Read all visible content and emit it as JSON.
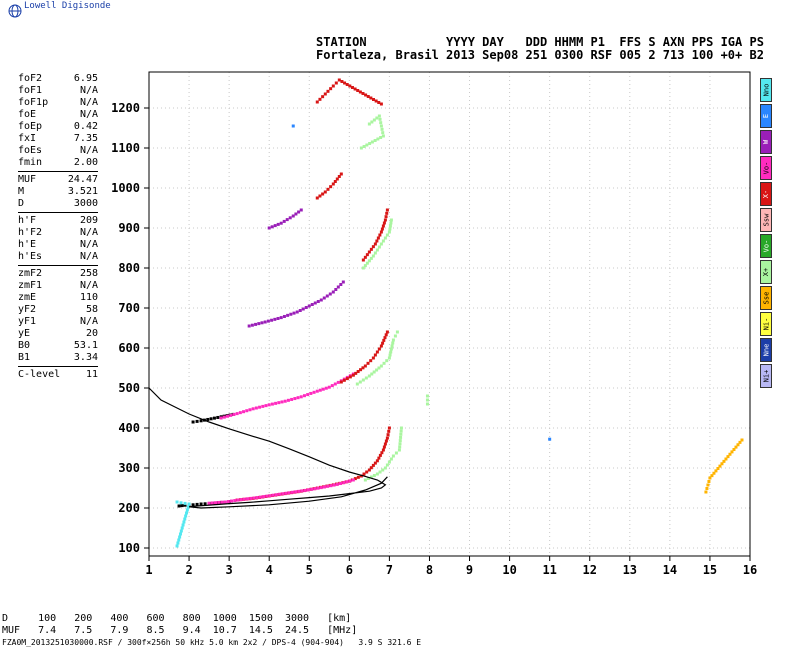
{
  "logo": {
    "text": "Lowell Digisonde",
    "icon": "globe-icon",
    "color": "#1a3fa8"
  },
  "header": {
    "line1": "STATION           YYYY DAY   DDD HHMM P1  FFS S AXN PPS IGA PS",
    "line2": "Fortaleza, Brasil 2013 Sep08 251 0300 RSF 005 2 713 100 +0+ B2"
  },
  "params": [
    {
      "name": "foF2",
      "value": "6.95"
    },
    {
      "name": "foF1",
      "value": "N/A"
    },
    {
      "name": "foF1p",
      "value": "N/A"
    },
    {
      "name": "foE",
      "value": "N/A"
    },
    {
      "name": "foEp",
      "value": "0.42"
    },
    {
      "name": "fxI",
      "value": "7.35"
    },
    {
      "name": "foEs",
      "value": "N/A"
    },
    {
      "name": "fmin",
      "value": "2.00"
    },
    {
      "sep": true
    },
    {
      "name": "MUF",
      "value": "24.47"
    },
    {
      "name": "M",
      "value": "3.521"
    },
    {
      "name": "D",
      "value": "3000"
    },
    {
      "sep": true
    },
    {
      "name": "h'F",
      "value": "209"
    },
    {
      "name": "h'F2",
      "value": "N/A"
    },
    {
      "name": "h'E",
      "value": "N/A"
    },
    {
      "name": "h'Es",
      "value": "N/A"
    },
    {
      "sep": true
    },
    {
      "name": "zmF2",
      "value": "258"
    },
    {
      "name": "zmF1",
      "value": "N/A"
    },
    {
      "name": "zmE",
      "value": "110"
    },
    {
      "name": "yF2",
      "value": "58"
    },
    {
      "name": "yF1",
      "value": "N/A"
    },
    {
      "name": "yE",
      "value": "20"
    },
    {
      "name": "B0",
      "value": "53.1"
    },
    {
      "name": "B1",
      "value": "3.34"
    },
    {
      "sep": true
    },
    {
      "name": "C-level",
      "value": "11"
    }
  ],
  "legend": [
    {
      "label": "Nno",
      "color": "#55e8f0"
    },
    {
      "label": "E",
      "color": "#2a86ff"
    },
    {
      "label": "W",
      "color": "#9a1fb8"
    },
    {
      "label": "Vo-",
      "color": "#ff2bbf"
    },
    {
      "label": "X-",
      "color": "#d81616"
    },
    {
      "label": "Ssw",
      "color": "#ffb6b6"
    },
    {
      "label": "Vo-",
      "color": "#28a828"
    },
    {
      "label": "X+",
      "color": "#aaf5a0"
    },
    {
      "label": "Sse",
      "color": "#ffb400"
    },
    {
      "label": "Ni-",
      "color": "#ffff40"
    },
    {
      "label": "Nne",
      "color": "#1c3ea8"
    },
    {
      "label": "Ni+",
      "color": "#b8b8f4"
    }
  ],
  "bottom_table": {
    "row1": "D     100   200   400   600   800  1000  1500  3000   [km]",
    "row2": "MUF   7.4   7.5   7.9   8.5   9.4  10.7  14.5  24.5   [MHz]"
  },
  "footer": "FZA0M_2013251030000.RSF / 300f×256h 50 kHz 5.0 km 2x2 / DPS-4 (904-904)   3.9 S 321.6 E",
  "chart_data": {
    "type": "scatter",
    "xlabel": "",
    "ylabel": "",
    "xlim": [
      1,
      16
    ],
    "ylim": [
      80,
      1290
    ],
    "x_ticks": [
      "1",
      "2",
      "3",
      "4",
      "5",
      "6",
      "7",
      "8",
      "9",
      "10",
      "11",
      "12",
      "13",
      "14",
      "15",
      "16"
    ],
    "y_ticks": [
      "100",
      "200",
      "300",
      "400",
      "500",
      "600",
      "700",
      "800",
      "900",
      "1000",
      "1100",
      "1200"
    ],
    "grid": true,
    "series": [
      {
        "color": "#000000",
        "points": [
          [
            1.75,
            205
          ],
          [
            1.9,
            207
          ],
          [
            2.1,
            208
          ],
          [
            2.3,
            210
          ],
          [
            2.5,
            211
          ],
          [
            2.8,
            214
          ],
          [
            3.0,
            216
          ]
        ]
      },
      {
        "color": "#d81616",
        "points": [
          [
            3.2,
            220
          ],
          [
            3.6,
            224
          ],
          [
            4.0,
            230
          ],
          [
            4.4,
            236
          ],
          [
            4.8,
            242
          ],
          [
            5.2,
            250
          ],
          [
            5.6,
            258
          ],
          [
            6.0,
            267
          ],
          [
            6.3,
            280
          ],
          [
            6.5,
            295
          ],
          [
            6.7,
            318
          ],
          [
            6.85,
            345
          ],
          [
            6.95,
            375
          ],
          [
            7.0,
            400
          ]
        ]
      },
      {
        "color": "#ff2bbf",
        "points": [
          [
            2.5,
            212
          ],
          [
            2.9,
            215
          ],
          [
            3.3,
            221
          ],
          [
            3.7,
            226
          ],
          [
            4.1,
            232
          ],
          [
            4.5,
            238
          ],
          [
            4.9,
            244
          ],
          [
            5.3,
            251
          ],
          [
            5.7,
            259
          ],
          [
            6.1,
            270
          ]
        ]
      },
      {
        "color": "#aaf5a0",
        "points": [
          [
            6.4,
            270
          ],
          [
            6.7,
            285
          ],
          [
            6.9,
            300
          ],
          [
            7.1,
            330
          ],
          [
            7.25,
            345
          ],
          [
            7.3,
            400
          ]
        ]
      },
      {
        "color": "#55e8f0",
        "points": [
          [
            1.7,
            215
          ],
          [
            1.8,
            213
          ],
          [
            2.0,
            210
          ],
          [
            1.7,
            105
          ]
        ]
      },
      {
        "color": "#000000",
        "points": [
          [
            2.1,
            415
          ],
          [
            2.3,
            418
          ],
          [
            2.8,
            428
          ],
          [
            3.1,
            434
          ]
        ]
      },
      {
        "color": "#ff2bbf",
        "points": [
          [
            2.8,
            425
          ],
          [
            3.2,
            436
          ],
          [
            3.6,
            448
          ],
          [
            4.0,
            458
          ],
          [
            4.4,
            467
          ],
          [
            4.8,
            478
          ],
          [
            5.2,
            492
          ],
          [
            5.5,
            502
          ],
          [
            5.8,
            518
          ],
          [
            6.1,
            535
          ]
        ]
      },
      {
        "color": "#d81616",
        "points": [
          [
            5.8,
            515
          ],
          [
            6.1,
            532
          ],
          [
            6.4,
            555
          ],
          [
            6.6,
            575
          ],
          [
            6.8,
            605
          ],
          [
            6.95,
            640
          ]
        ]
      },
      {
        "color": "#aaf5a0",
        "points": [
          [
            6.2,
            510
          ],
          [
            6.5,
            530
          ],
          [
            6.8,
            555
          ],
          [
            7.0,
            575
          ],
          [
            7.1,
            620
          ],
          [
            7.2,
            640
          ]
        ]
      },
      {
        "color": "#9a1fb8",
        "points": [
          [
            3.5,
            655
          ],
          [
            3.9,
            665
          ],
          [
            4.3,
            676
          ],
          [
            4.7,
            690
          ],
          [
            5.0,
            705
          ],
          [
            5.3,
            720
          ],
          [
            5.6,
            740
          ],
          [
            5.85,
            765
          ]
        ]
      },
      {
        "color": "#d81616",
        "points": [
          [
            6.35,
            820
          ],
          [
            6.5,
            840
          ],
          [
            6.65,
            860
          ],
          [
            6.8,
            890
          ],
          [
            6.9,
            920
          ],
          [
            6.95,
            945
          ]
        ]
      },
      {
        "color": "#aaf5a0",
        "points": [
          [
            6.35,
            800
          ],
          [
            6.6,
            830
          ],
          [
            6.8,
            860
          ],
          [
            7.0,
            890
          ],
          [
            7.05,
            920
          ]
        ]
      },
      {
        "color": "#9a1fb8",
        "points": [
          [
            4.0,
            900
          ],
          [
            4.3,
            912
          ],
          [
            4.6,
            930
          ],
          [
            4.8,
            945
          ]
        ]
      },
      {
        "color": "#d81616",
        "points": [
          [
            5.2,
            975
          ],
          [
            5.4,
            990
          ],
          [
            5.6,
            1010
          ],
          [
            5.8,
            1035
          ]
        ]
      },
      {
        "color": "#d81616",
        "points": [
          [
            5.2,
            1215
          ],
          [
            5.4,
            1235
          ],
          [
            5.6,
            1255
          ],
          [
            5.75,
            1270
          ],
          [
            6.8,
            1210
          ]
        ]
      },
      {
        "color": "#aaf5a0",
        "points": [
          [
            6.5,
            1160
          ],
          [
            6.75,
            1180
          ],
          [
            6.85,
            1130
          ],
          [
            6.3,
            1100
          ],
          [
            7.95,
            460
          ],
          [
            7.95,
            480
          ]
        ]
      },
      {
        "color": "#2a86ff",
        "points": [
          [
            4.6,
            1155
          ],
          [
            11.0,
            372
          ]
        ]
      },
      {
        "color": "#ffb400",
        "points": [
          [
            14.9,
            240
          ],
          [
            15.0,
            275
          ],
          [
            15.8,
            370
          ]
        ]
      }
    ],
    "curve": {
      "color": "#000000",
      "points": [
        [
          1.0,
          500
        ],
        [
          1.3,
          470
        ],
        [
          1.6,
          455
        ],
        [
          2.0,
          435
        ],
        [
          2.5,
          415
        ],
        [
          3.0,
          398
        ],
        [
          3.5,
          382
        ],
        [
          4.0,
          367
        ],
        [
          4.5,
          348
        ],
        [
          5.0,
          328
        ],
        [
          5.5,
          307
        ],
        [
          6.0,
          290
        ],
        [
          6.4,
          279
        ],
        [
          6.7,
          270
        ],
        [
          6.9,
          258
        ],
        [
          6.8,
          250
        ],
        [
          6.5,
          242
        ],
        [
          6.0,
          236
        ],
        [
          5.5,
          230
        ],
        [
          5.0,
          226
        ],
        [
          4.5,
          222
        ],
        [
          4.0,
          218
        ],
        [
          3.5,
          214
        ],
        [
          3.0,
          211
        ],
        [
          2.5,
          207
        ],
        [
          2.2,
          205
        ],
        [
          2.0,
          203
        ],
        [
          2.3,
          200
        ],
        [
          3.0,
          203
        ],
        [
          4.0,
          208
        ],
        [
          5.0,
          217
        ],
        [
          5.8,
          228
        ],
        [
          6.4,
          245
        ],
        [
          6.8,
          262
        ],
        [
          6.95,
          278
        ]
      ]
    }
  }
}
